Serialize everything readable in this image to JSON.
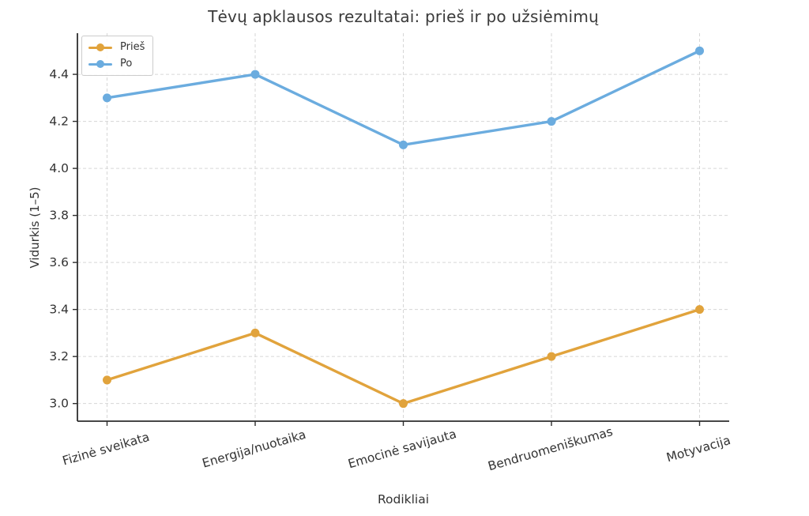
{
  "chart_data": {
    "type": "line",
    "title": "Tėvų apklausos rezultatai: prieš ir po užsiėmimų",
    "xlabel": "Rodikliai",
    "ylabel": "Vidurkis (1–5)",
    "categories": [
      "Fizinė sveikata",
      "Energija/nuotaika",
      "Emocinė savijauta",
      "Bendruomeniškumas",
      "Motyvacija"
    ],
    "series": [
      {
        "name": "Prieš",
        "color": "#E1A33C",
        "values": [
          3.1,
          3.3,
          3.0,
          3.2,
          3.4
        ]
      },
      {
        "name": "Po",
        "color": "#6BACDF",
        "values": [
          4.3,
          4.4,
          4.1,
          4.2,
          4.5
        ]
      }
    ],
    "ylim": [
      2.925,
      4.575
    ],
    "yticks": [
      3.0,
      3.2,
      3.4,
      3.6,
      3.8,
      4.0,
      4.2,
      4.4
    ],
    "grid": true,
    "legend_position": "upper left",
    "grid_color": "#d6d6d6",
    "spine_color": "#2e2e2e",
    "text_color": "#333333",
    "background": "#ffffff"
  }
}
